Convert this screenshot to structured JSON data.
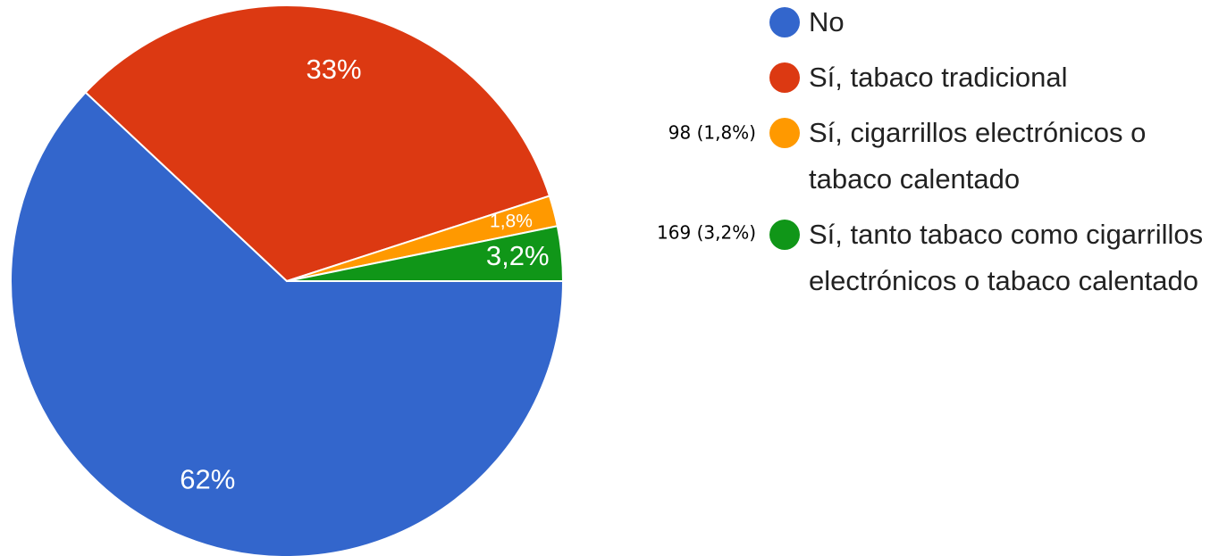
{
  "chart_data": {
    "type": "pie",
    "categories": [
      "No",
      "Sí, tabaco tradicional",
      "Sí, cigarrillos electrónicos o tabaco calentado",
      "Sí, tanto tabaco como cigarrillos electrónicos o tabaco calentado"
    ],
    "values": [
      62,
      33,
      1.8,
      3.2
    ],
    "value_labels": [
      "62%",
      "33%",
      "1,8%",
      "3,2%"
    ],
    "colors": [
      "#3366cc",
      "#dc3912",
      "#ff9900",
      "#109618"
    ],
    "annotations": [
      "98 (1,8%)",
      "169 (3,2%)"
    ],
    "legend": "right"
  }
}
